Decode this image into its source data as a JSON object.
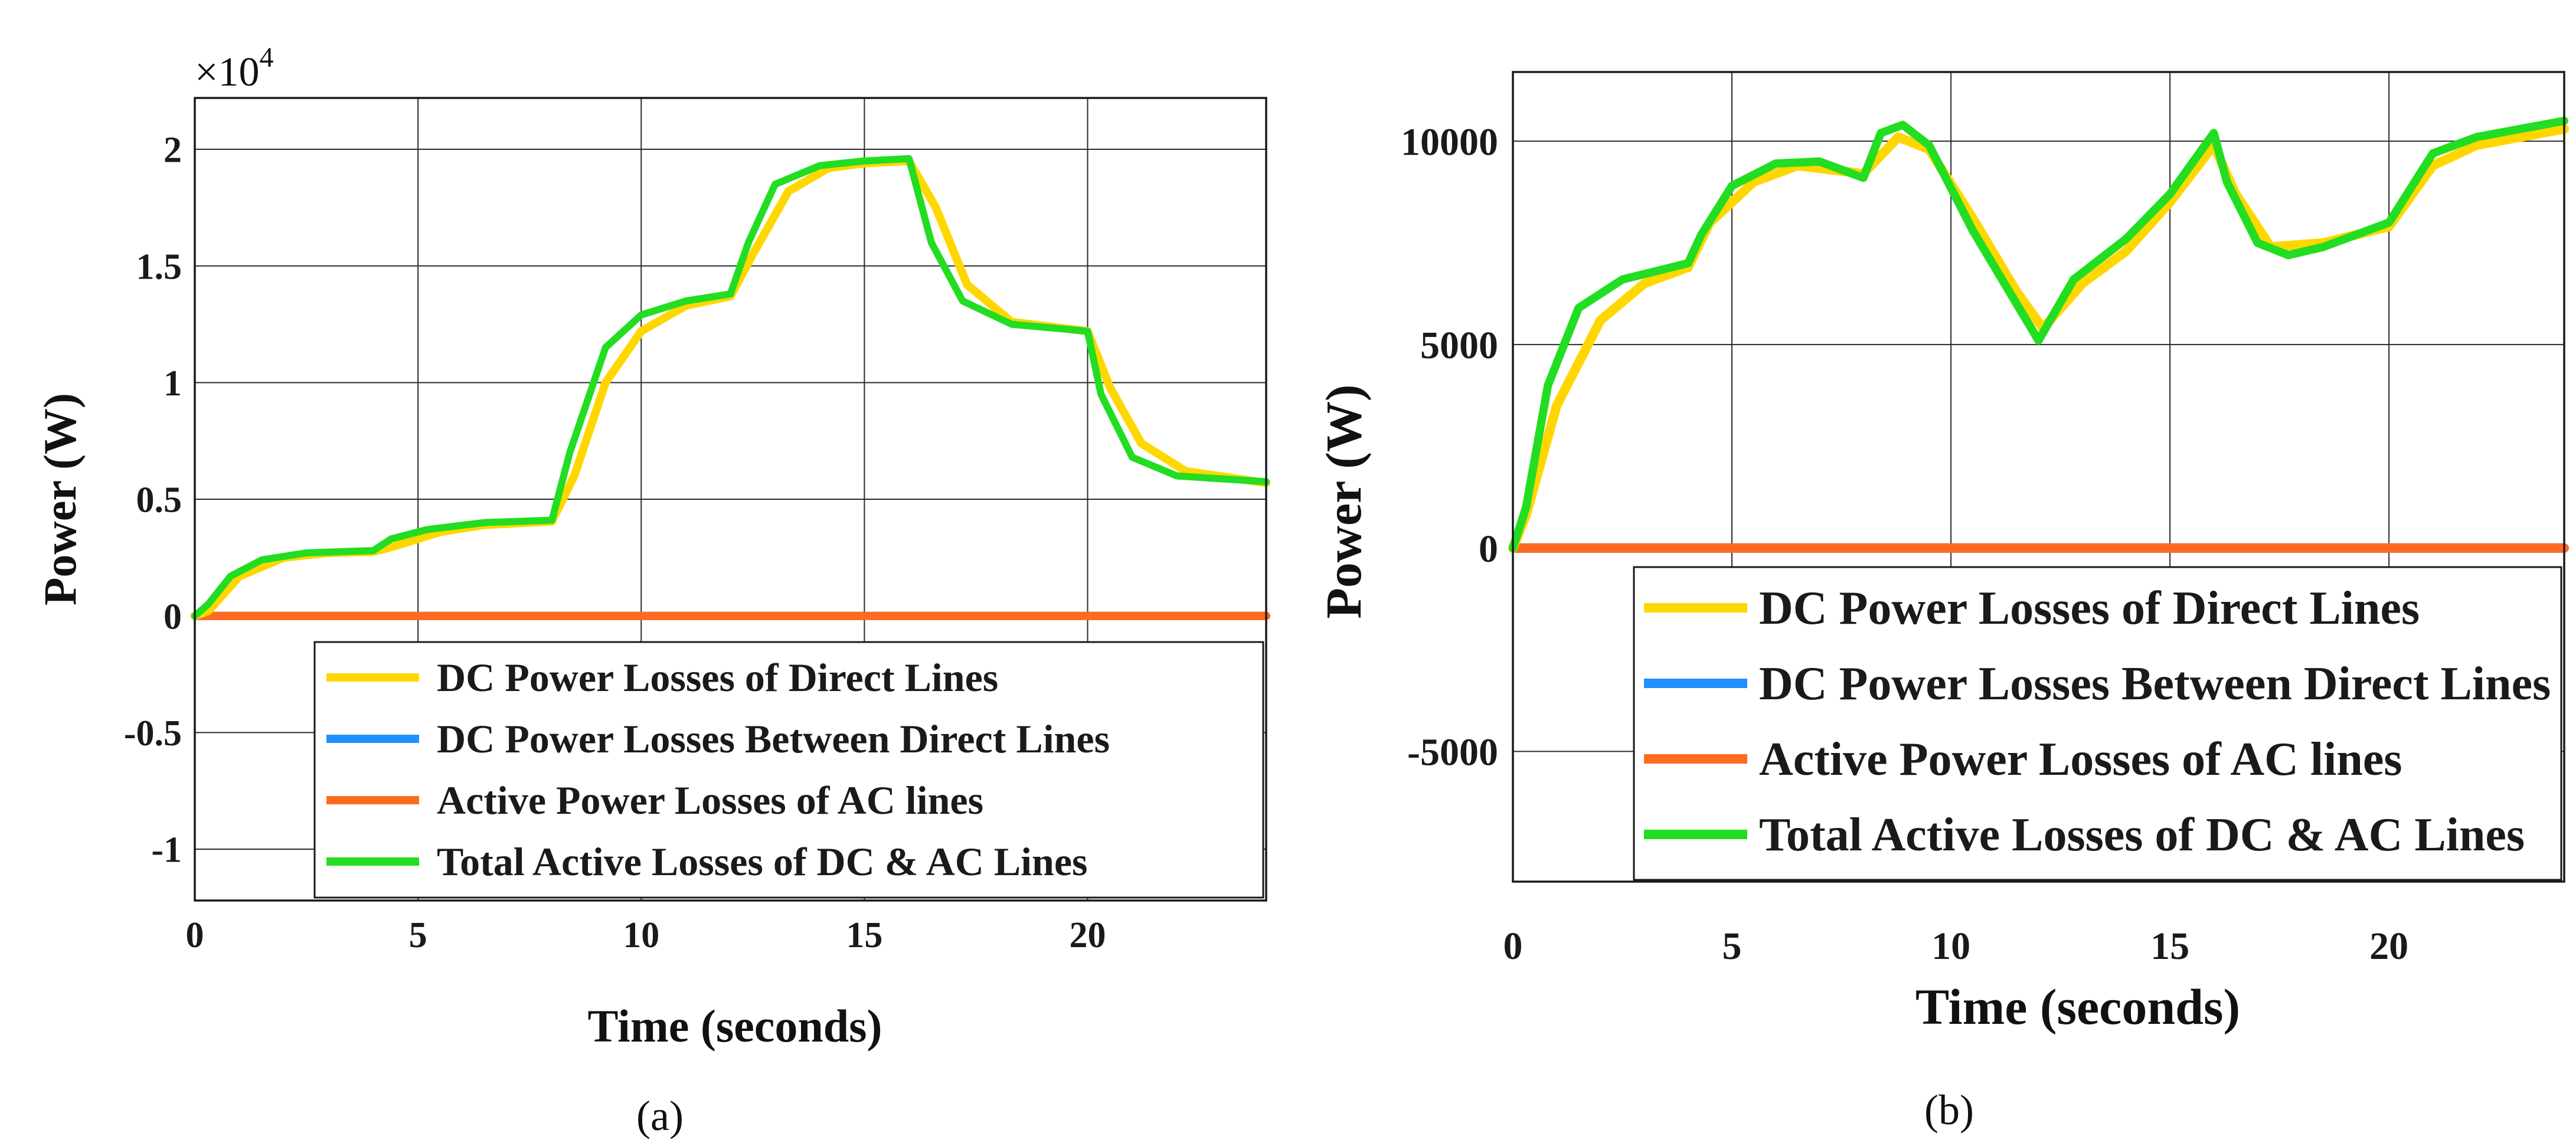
{
  "chart_data": [
    {
      "type": "line",
      "panel_label": "(a)",
      "xlabel": "Time (seconds)",
      "ylabel": "Power (W)",
      "xlim": [
        0,
        24
      ],
      "ylim": [
        -1.22,
        2.22
      ],
      "xticks": [
        "0",
        "5",
        "10",
        "15",
        "20"
      ],
      "yticks": [
        "2",
        "1.5",
        "1",
        "0.5",
        "0",
        "-0.5",
        "-1"
      ],
      "y_multiplier": "×10",
      "y_multiplier_exp": "4",
      "grid": true,
      "legend_position": "bottom-right",
      "series": [
        {
          "name": "DC Power Losses of Direct Lines",
          "color": "#FFD700",
          "x": [
            0,
            0.3,
            1,
            2,
            3,
            4,
            4.5,
            5.5,
            6.5,
            8,
            8.5,
            9.2,
            10,
            11,
            12,
            12.5,
            13.3,
            14.2,
            15,
            16,
            16.6,
            17.3,
            18.3,
            20,
            20.5,
            21.2,
            22.2,
            24
          ],
          "y": [
            0,
            0.02,
            0.17,
            0.25,
            0.27,
            0.275,
            0.3,
            0.36,
            0.39,
            0.405,
            0.6,
            1.0,
            1.22,
            1.33,
            1.37,
            1.55,
            1.82,
            1.92,
            1.94,
            1.95,
            1.75,
            1.42,
            1.26,
            1.22,
            0.98,
            0.74,
            0.62,
            0.57
          ]
        },
        {
          "name": "DC Power Losses Between Direct Lines",
          "color": "#1E90FF",
          "x": [
            0,
            24
          ],
          "y": [
            0,
            0
          ]
        },
        {
          "name": "Active Power Losses of AC lines",
          "color": "#FF6A1F",
          "x": [
            0,
            24
          ],
          "y": [
            0,
            0
          ]
        },
        {
          "name": "Total Active Losses of DC & AC Lines",
          "color": "#22DD22",
          "x": [
            0,
            0.3,
            0.8,
            1.5,
            2.5,
            4,
            4.4,
            5.2,
            6.5,
            8,
            8.4,
            9.2,
            10,
            11,
            12,
            12.4,
            13,
            14,
            15,
            16,
            16.5,
            17.2,
            18.3,
            20,
            20.3,
            21,
            22,
            24
          ],
          "y": [
            0,
            0.05,
            0.17,
            0.24,
            0.27,
            0.28,
            0.33,
            0.37,
            0.4,
            0.41,
            0.7,
            1.15,
            1.29,
            1.35,
            1.38,
            1.6,
            1.85,
            1.93,
            1.95,
            1.96,
            1.6,
            1.35,
            1.25,
            1.22,
            0.95,
            0.68,
            0.6,
            0.575
          ]
        }
      ]
    },
    {
      "type": "line",
      "panel_label": "(b)",
      "xlabel": "Time (seconds)",
      "ylabel": "Power (W)",
      "xlim": [
        0,
        24
      ],
      "ylim": [
        -8200,
        11700
      ],
      "xticks": [
        "0",
        "5",
        "10",
        "15",
        "20"
      ],
      "yticks": [
        "10000",
        "5000",
        "0",
        "-5000"
      ],
      "grid": true,
      "legend_position": "bottom-right",
      "series": [
        {
          "name": "DC Power Losses of Direct Lines",
          "color": "#FFD700",
          "x": [
            0,
            0.3,
            1,
            2,
            3,
            4,
            4.5,
            5.5,
            6.5,
            8,
            8.8,
            9.5,
            10.5,
            11.5,
            12.1,
            13,
            14,
            15,
            16,
            16.5,
            17.3,
            18.5,
            20,
            21,
            22,
            24
          ],
          "y": [
            0,
            800,
            3500,
            5600,
            6500,
            6900,
            8000,
            9000,
            9400,
            9200,
            10100,
            9800,
            8100,
            6300,
            5400,
            6500,
            7300,
            8500,
            9900,
            8700,
            7400,
            7500,
            7900,
            9400,
            9900,
            10300
          ]
        },
        {
          "name": "DC Power Losses Between Direct Lines",
          "color": "#1E90FF",
          "x": [
            0,
            24
          ],
          "y": [
            0,
            0
          ]
        },
        {
          "name": "Active Power Losses of AC lines",
          "color": "#FF6A1F",
          "x": [
            0,
            24
          ],
          "y": [
            0,
            0
          ]
        },
        {
          "name": "Total Active Losses of DC & AC Lines",
          "color": "#22DD22",
          "x": [
            0,
            0.3,
            0.8,
            1.5,
            2.5,
            4,
            4.3,
            5,
            6,
            7,
            8,
            8.4,
            8.9,
            9.5,
            10.5,
            11.5,
            12,
            12.8,
            14,
            15,
            16,
            16.3,
            17,
            17.7,
            18.5,
            20,
            21,
            22,
            24
          ],
          "y": [
            0,
            1000,
            4000,
            5900,
            6600,
            7000,
            7700,
            8900,
            9450,
            9500,
            9100,
            10200,
            10400,
            9900,
            7800,
            6000,
            5100,
            6600,
            7600,
            8700,
            10200,
            9000,
            7500,
            7200,
            7400,
            8000,
            9700,
            10100,
            10500
          ]
        }
      ]
    }
  ]
}
